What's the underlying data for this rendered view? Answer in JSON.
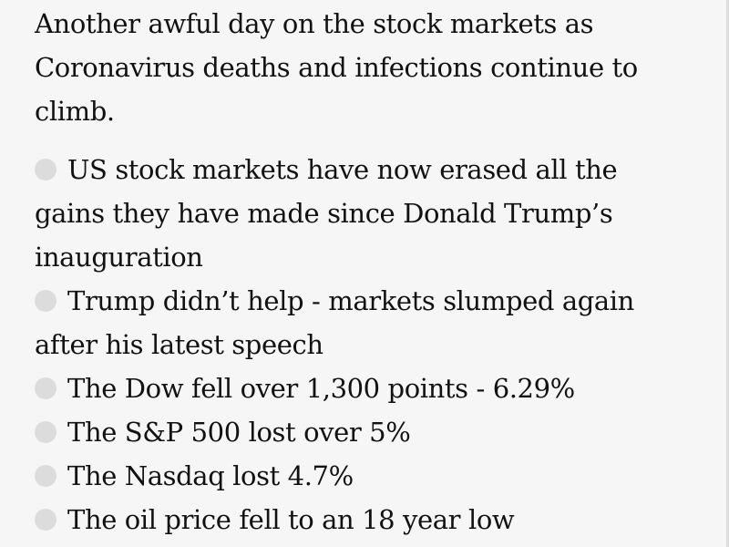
{
  "article": {
    "intro": "Another awful day on the stock markets as Coronavirus deaths and infections continue to climb.",
    "bullets": [
      "US stock markets have now erased all the gains they have made since Donald Trump’s inauguration",
      "Trump didn’t help - markets slumped again after his latest speech",
      "The Dow fell over 1,300 points - 6.29%",
      "The S&P 500 lost over 5%",
      "The Nasdaq lost 4.7%",
      "The oil price fell to an 18 year low"
    ]
  },
  "colors": {
    "background": "#f6f6f6",
    "text": "#121212",
    "bullet": "#dcdcdc"
  }
}
